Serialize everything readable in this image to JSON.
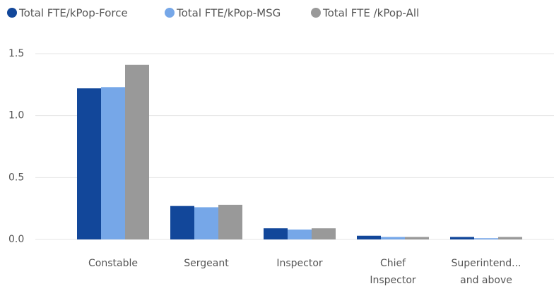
{
  "chart_data": {
    "type": "bar",
    "categories": [
      "Constable",
      "Sergeant",
      "Inspector",
      "Chief Inspector",
      "Superintend... and above"
    ],
    "series": [
      {
        "name": "Total FTE/kPop-Force",
        "color": "#12479a",
        "values": [
          1.22,
          0.27,
          0.09,
          0.03,
          0.02
        ]
      },
      {
        "name": "Total FTE/kPop-MSG",
        "color": "#76a7e8",
        "values": [
          1.23,
          0.26,
          0.08,
          0.02,
          0.01
        ]
      },
      {
        "name": "Total FTE /kPop-All",
        "color": "#999999",
        "values": [
          1.41,
          0.28,
          0.09,
          0.02,
          0.02
        ]
      }
    ],
    "ylim": [
      0,
      1.5
    ],
    "yticks": [
      {
        "value": 0,
        "label": "0.0"
      },
      0.5,
      {
        "value": 1,
        "label": "1.0"
      },
      {
        "value": 1.5,
        "label": "1.5"
      }
    ],
    "grid": true,
    "legend": "top"
  }
}
